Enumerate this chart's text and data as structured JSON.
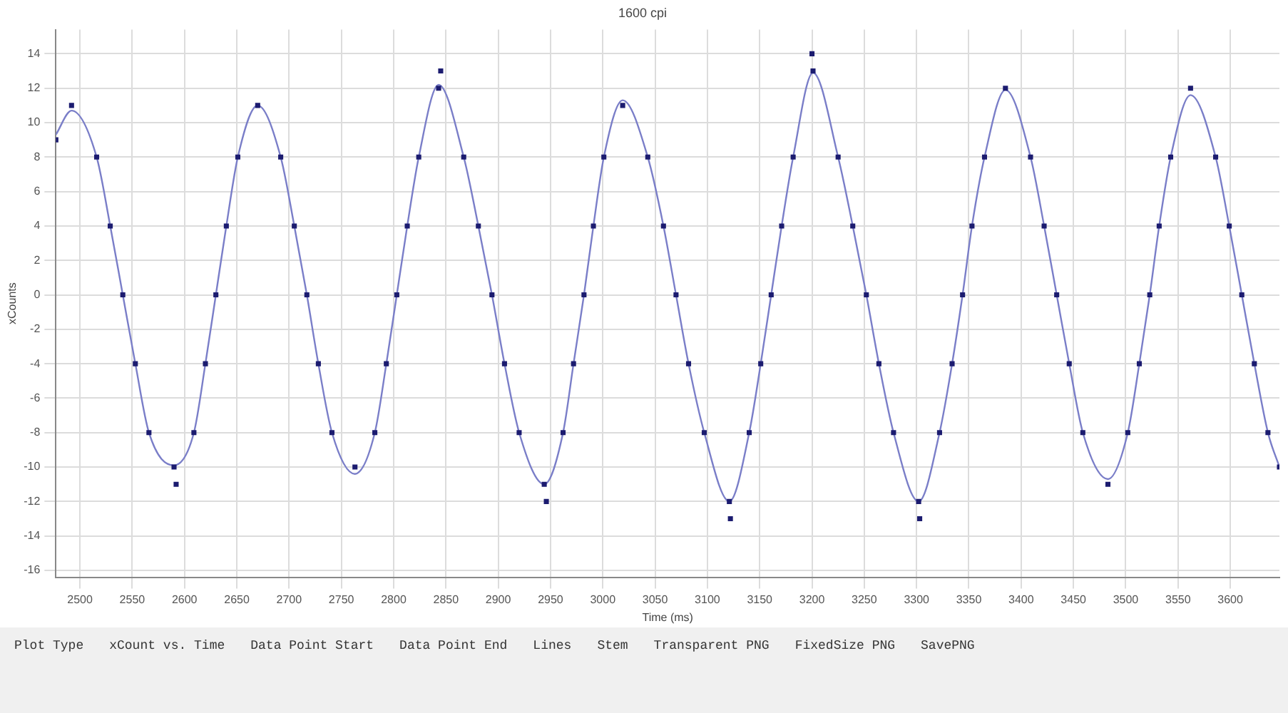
{
  "chart_data": {
    "type": "scatter",
    "subtitle": "1600 cpi",
    "xlabel": "Time (ms)",
    "ylabel": "xCounts",
    "xlim": [
      2477,
      3647
    ],
    "xticks": [
      2500,
      2550,
      2600,
      2650,
      2700,
      2750,
      2800,
      2850,
      2900,
      2950,
      3000,
      3050,
      3100,
      3150,
      3200,
      3250,
      3300,
      3350,
      3400,
      3450,
      3500,
      3550,
      3600
    ],
    "ylim": [
      -16.4,
      15.4
    ],
    "yticks": [
      -16,
      -14,
      -12,
      -10,
      -8,
      -6,
      -4,
      -2,
      0,
      2,
      4,
      6,
      8,
      10,
      12,
      14
    ],
    "grid": true,
    "legend": false,
    "marker": "square",
    "series": [
      {
        "type": "line",
        "color": "#7a7ec8",
        "marker": "none",
        "x": [
          2477,
          2492,
          2516,
          2529,
          2541,
          2553,
          2566,
          2590,
          2609,
          2620,
          2630,
          2640,
          2651,
          2670,
          2692,
          2705,
          2717,
          2728,
          2741,
          2763,
          2782,
          2793,
          2803,
          2813,
          2824,
          2843,
          2867,
          2881,
          2894,
          2906,
          2920,
          2944,
          2962,
          2972,
          2982,
          2991,
          3001,
          3019,
          3043,
          3058,
          3070,
          3082,
          3097,
          3121,
          3140,
          3151,
          3161,
          3171,
          3182,
          3201,
          3225,
          3239,
          3252,
          3264,
          3278,
          3302,
          3322,
          3334,
          3344,
          3353,
          3365,
          3385,
          3409,
          3422,
          3434,
          3446,
          3459,
          3483,
          3502,
          3513,
          3523,
          3532,
          3543,
          3562,
          3586,
          3599,
          3611,
          3623,
          3636,
          3647
        ],
        "values": [
          9.3,
          10.7,
          8,
          4,
          0,
          -4,
          -8,
          -9.9,
          -8,
          -4,
          0,
          4,
          8,
          11,
          8,
          4,
          0,
          -4,
          -8,
          -10.4,
          -8,
          -4,
          0,
          4,
          8,
          12.2,
          8,
          4,
          0,
          -4,
          -8,
          -11,
          -8,
          -4,
          0,
          4,
          8,
          11.3,
          8,
          4,
          0,
          -4,
          -8,
          -12,
          -8,
          -4,
          0,
          4,
          8,
          12.9,
          8,
          4,
          0,
          -4,
          -8,
          -12,
          -8,
          -4,
          0,
          4,
          8,
          11.9,
          8,
          4,
          0,
          -4,
          -8,
          -10.7,
          -8,
          -4,
          0,
          4,
          8,
          11.6,
          8,
          4,
          0,
          -4,
          -8,
          -10
        ]
      },
      {
        "color": "#1c1c70",
        "x": [
          2477,
          2492,
          2516,
          2529,
          2541,
          2553,
          2566,
          2590,
          2592,
          2609,
          2620,
          2630,
          2640,
          2651,
          2670,
          2692,
          2705,
          2717,
          2728,
          2741,
          2763,
          2782,
          2793,
          2803,
          2813,
          2824,
          2843,
          2845,
          2867,
          2881,
          2894,
          2906,
          2920,
          2944,
          2946,
          2962,
          2972,
          2982,
          2991,
          3001,
          3019,
          3043,
          3058,
          3070,
          3082,
          3097,
          3121,
          3122,
          3140,
          3151,
          3161,
          3171,
          3182,
          3201,
          3200,
          3225,
          3239,
          3252,
          3264,
          3278,
          3302,
          3303,
          3322,
          3334,
          3344,
          3353,
          3365,
          3385,
          3409,
          3422,
          3434,
          3446,
          3459,
          3483,
          3502,
          3513,
          3523,
          3532,
          3543,
          3562,
          3586,
          3599,
          3611,
          3623,
          3636,
          3647
        ],
        "values": [
          9,
          11,
          8,
          4,
          0,
          -4,
          -8,
          -10,
          -11,
          -8,
          -4,
          0,
          4,
          8,
          11,
          8,
          4,
          0,
          -4,
          -8,
          -10,
          -8,
          -4,
          0,
          4,
          8,
          12,
          13,
          8,
          4,
          0,
          -4,
          -8,
          -11,
          -12,
          -8,
          -4,
          0,
          4,
          8,
          11,
          8,
          4,
          0,
          -4,
          -8,
          -12,
          -13,
          -8,
          -4,
          0,
          4,
          8,
          13,
          14,
          8,
          4,
          0,
          -4,
          -8,
          -12,
          -13,
          -8,
          -4,
          0,
          4,
          8,
          12,
          8,
          4,
          0,
          -4,
          -8,
          -11,
          -8,
          -4,
          0,
          4,
          8,
          12,
          8,
          4,
          0,
          -4,
          -8,
          -10
        ]
      }
    ],
    "annotations": [
      "Plot Type",
      "xCount vs. Time",
      "Data Point Start",
      "Data Point End",
      "Lines",
      "Stem",
      "Transparent PNG",
      "FixedSize PNG",
      "SavePNG"
    ]
  }
}
